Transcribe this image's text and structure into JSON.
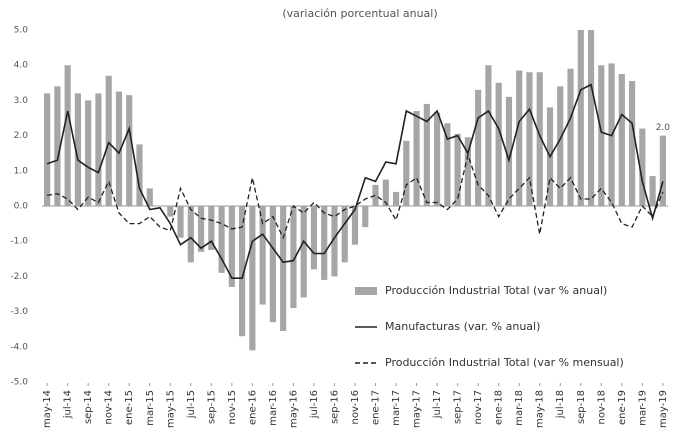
{
  "chart_data": {
    "type": "bar_line",
    "title": "(variación porcentual anual)",
    "categories": [
      "may-14",
      null,
      "jul-14",
      null,
      "sep-14",
      null,
      "nov-14",
      null,
      "ene-15",
      null,
      "mar-15",
      null,
      "may-15",
      null,
      "jul-15",
      null,
      "sep-15",
      null,
      "nov-15",
      null,
      "ene-16",
      null,
      "mar-16",
      null,
      "may-16",
      null,
      "jul-16",
      null,
      "sep-16",
      null,
      "nov-16",
      null,
      "ene-17",
      null,
      "mar-17",
      null,
      "may-17",
      null,
      "jul-17",
      null,
      "sep-17",
      null,
      "nov-17",
      null,
      "ene-18",
      null,
      "mar-18",
      null,
      "may-18",
      null,
      "jul-18",
      null,
      "sep-18",
      null,
      "nov-18",
      null,
      "ene-19",
      null,
      "mar-19",
      null,
      "may-19"
    ],
    "series": [
      {
        "name": "Producción Industrial Total (var % anual)",
        "kind": "bar",
        "color": "#a6a6a6",
        "values": [
          3.2,
          3.4,
          4.0,
          3.2,
          3.0,
          3.2,
          3.7,
          3.25,
          3.15,
          1.75,
          0.5,
          0.0,
          -0.3,
          -0.9,
          -1.6,
          -1.3,
          -1.25,
          -1.9,
          -2.3,
          -3.7,
          -4.1,
          -2.8,
          -3.3,
          -3.55,
          -2.9,
          -2.6,
          -1.8,
          -2.1,
          -2.0,
          -1.6,
          -1.1,
          -0.6,
          0.6,
          0.75,
          0.4,
          1.85,
          2.7,
          2.9,
          2.65,
          2.35,
          2.05,
          1.95,
          3.3,
          4.0,
          3.5,
          3.1,
          3.85,
          3.8,
          3.8,
          2.8,
          3.4,
          3.9,
          5.0,
          5.0,
          4.0,
          4.05,
          3.75,
          3.55,
          2.2,
          0.85,
          2.0
        ],
        "value_labels": [
          null,
          null,
          null,
          null,
          null,
          null,
          null,
          null,
          null,
          null,
          null,
          null,
          null,
          null,
          null,
          null,
          null,
          null,
          null,
          null,
          null,
          null,
          null,
          null,
          null,
          null,
          null,
          null,
          null,
          null,
          null,
          null,
          null,
          null,
          null,
          null,
          null,
          null,
          null,
          null,
          null,
          null,
          null,
          null,
          null,
          null,
          null,
          null,
          null,
          null,
          null,
          null,
          null,
          null,
          null,
          null,
          null,
          null,
          null,
          null,
          "2.0"
        ]
      },
      {
        "name": "Manufacturas (var. % anual)",
        "kind": "line",
        "dash": false,
        "color": "#222222",
        "values": [
          1.2,
          1.3,
          2.7,
          1.3,
          1.1,
          0.95,
          1.8,
          1.5,
          2.2,
          0.5,
          -0.1,
          -0.05,
          -0.5,
          -1.1,
          -0.9,
          -1.2,
          -1.0,
          -1.5,
          -2.05,
          -2.05,
          -1.0,
          -0.8,
          -1.2,
          -1.6,
          -1.55,
          -1.0,
          -1.35,
          -1.35,
          -0.9,
          -0.5,
          -0.1,
          0.8,
          0.7,
          1.25,
          1.2,
          2.7,
          2.55,
          2.4,
          2.7,
          1.9,
          2.0,
          1.5,
          2.5,
          2.7,
          2.2,
          1.3,
          2.4,
          2.75,
          2.0,
          1.4,
          1.9,
          2.5,
          3.3,
          3.45,
          2.1,
          2.0,
          2.6,
          2.35,
          0.7,
          -0.35,
          0.7
        ]
      },
      {
        "name": "Producción Industrial Total (var % mensual)",
        "kind": "line",
        "dash": true,
        "color": "#222222",
        "values": [
          0.3,
          0.35,
          0.2,
          -0.1,
          0.25,
          0.1,
          0.7,
          -0.2,
          -0.5,
          -0.5,
          -0.3,
          -0.6,
          -0.7,
          0.5,
          -0.1,
          -0.35,
          -0.4,
          -0.5,
          -0.65,
          -0.6,
          0.8,
          -0.5,
          -0.3,
          -0.9,
          0.0,
          -0.2,
          0.1,
          -0.2,
          -0.3,
          -0.1,
          0.0,
          0.2,
          0.3,
          0.1,
          -0.4,
          0.6,
          0.8,
          0.1,
          0.1,
          -0.1,
          0.2,
          1.45,
          0.6,
          0.3,
          -0.3,
          0.2,
          0.5,
          0.8,
          -0.8,
          0.8,
          0.5,
          0.8,
          0.2,
          0.2,
          0.5,
          0.1,
          -0.5,
          -0.6,
          0.0,
          -0.3,
          0.4
        ]
      }
    ],
    "ylim": [
      -5,
      5
    ],
    "yticks": [
      {
        "value": 5,
        "label": "5.0"
      },
      {
        "value": 4,
        "label": "4.0"
      },
      {
        "value": 3,
        "label": "3.0"
      },
      {
        "value": 2,
        "label": "2.0"
      },
      {
        "value": 1,
        "label": "1.0"
      },
      {
        "value": 0,
        "label": "0.0"
      },
      {
        "value": -1,
        "label": "-1.0"
      },
      {
        "value": -2,
        "label": "-2.0"
      },
      {
        "value": -3,
        "label": "-3.0"
      },
      {
        "value": -4,
        "label": "-4.0"
      },
      {
        "value": -5,
        "label": "-5.0"
      }
    ],
    "grid": false,
    "legend": "lower right"
  }
}
